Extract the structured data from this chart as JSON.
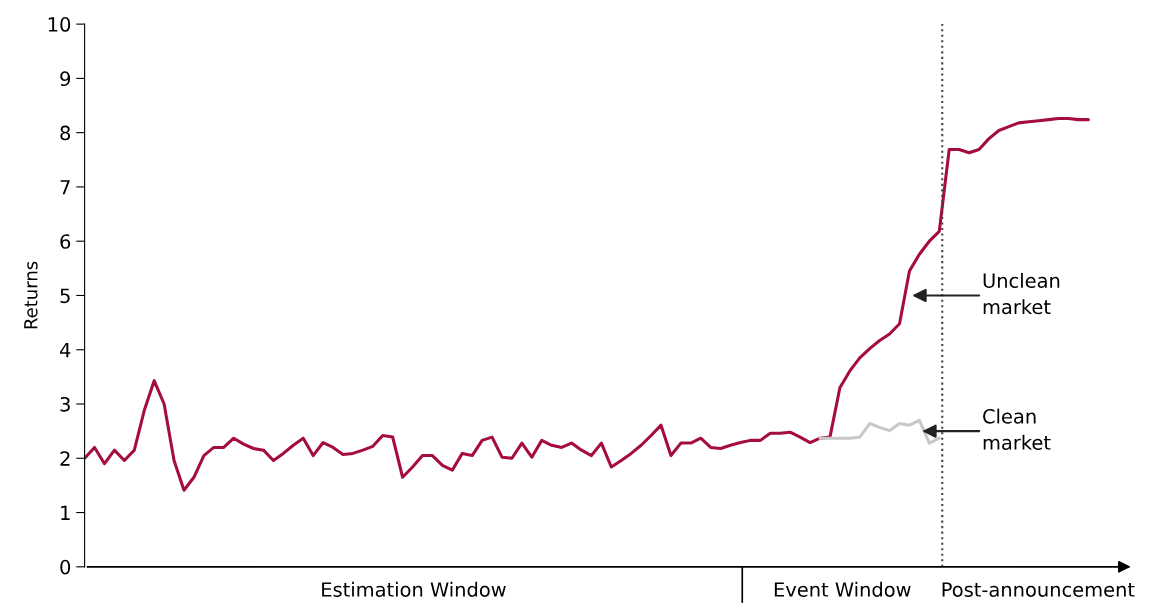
{
  "chart_data": {
    "type": "line",
    "ylabel": "Returns",
    "categories": [
      null,
      null,
      null,
      null,
      null,
      null,
      null,
      null,
      null,
      null,
      null,
      null,
      null,
      null,
      null,
      null,
      null,
      null,
      null,
      null,
      null,
      null,
      null,
      null,
      null,
      null,
      null,
      null,
      null,
      null,
      null,
      null,
      null,
      null,
      null,
      null,
      null,
      null,
      null,
      null,
      null,
      null,
      null,
      null,
      null,
      null,
      null,
      null,
      null,
      null,
      null,
      null,
      null,
      null,
      null,
      null,
      null,
      null,
      null,
      null,
      null,
      null,
      null,
      null,
      null,
      null,
      null,
      null,
      null,
      null,
      null,
      null,
      null,
      null,
      null,
      null,
      null,
      null,
      null,
      null,
      null,
      null,
      null,
      null,
      null,
      null,
      null,
      null,
      null,
      null,
      null,
      null,
      null,
      null,
      null,
      null,
      null,
      null,
      null,
      null,
      null,
      null
    ],
    "series": [
      {
        "color": "#a50d3c",
        "values": [
          2.0,
          2.2,
          1.9,
          2.15,
          1.96,
          2.15,
          2.88,
          3.43,
          3.0,
          1.96,
          1.41,
          1.65,
          2.05,
          2.2,
          2.2,
          2.37,
          2.26,
          2.18,
          2.15,
          1.96,
          2.09,
          2.24,
          2.37,
          2.05,
          2.29,
          2.2,
          2.07,
          2.09,
          2.15,
          2.22,
          2.42,
          2.39,
          1.65,
          1.84,
          2.05,
          2.05,
          1.87,
          1.78,
          2.09,
          2.05,
          2.33,
          2.39,
          2.02,
          2.0,
          2.28,
          2.02,
          2.33,
          2.24,
          2.2,
          2.28,
          2.15,
          2.05,
          2.28,
          1.84,
          1.96,
          2.09,
          2.24,
          2.42,
          2.61,
          2.05,
          2.28,
          2.28,
          2.37,
          2.2,
          2.18,
          2.24,
          2.29,
          2.33,
          2.33,
          2.46,
          2.46,
          2.48,
          2.39,
          2.29,
          2.37,
          2.39,
          3.3,
          3.61,
          3.85,
          4.02,
          4.17,
          4.29,
          4.48,
          5.45,
          5.76,
          6.0,
          6.18,
          7.69,
          7.69,
          7.63,
          7.69,
          7.89,
          8.04,
          8.11,
          8.18,
          8.2,
          8.22,
          8.24,
          8.26,
          8.26,
          8.24,
          8.24
        ]
      },
      {
        "color": "#c8c8c8",
        "values": [
          null,
          null,
          null,
          null,
          null,
          null,
          null,
          null,
          null,
          null,
          null,
          null,
          null,
          null,
          null,
          null,
          null,
          null,
          null,
          null,
          null,
          null,
          null,
          null,
          null,
          null,
          null,
          null,
          null,
          null,
          null,
          null,
          null,
          null,
          null,
          null,
          null,
          null,
          null,
          null,
          null,
          null,
          null,
          null,
          null,
          null,
          null,
          null,
          null,
          null,
          null,
          null,
          null,
          null,
          null,
          null,
          null,
          null,
          null,
          null,
          null,
          null,
          null,
          null,
          null,
          null,
          null,
          null,
          null,
          null,
          null,
          null,
          null,
          null,
          2.37,
          2.37,
          2.37,
          2.37,
          2.39,
          2.64,
          2.57,
          2.51,
          2.64,
          2.61,
          2.7,
          2.28,
          2.37,
          null,
          null,
          null,
          null,
          null,
          null,
          null,
          null,
          null,
          null,
          null,
          null,
          null,
          null,
          null
        ]
      }
    ],
    "ylim": [
      0,
      10
    ],
    "yticks": [
      0,
      1,
      2,
      3,
      4,
      5,
      6,
      7,
      8,
      9,
      10
    ],
    "tick_labels": "y",
    "grid": false,
    "marker": "none",
    "line_style": "solid",
    "annotations": [
      "Unclean\nmarket",
      "Clean\nmarket",
      "Estimation Window",
      "Event Window",
      "Post-announcement"
    ]
  }
}
